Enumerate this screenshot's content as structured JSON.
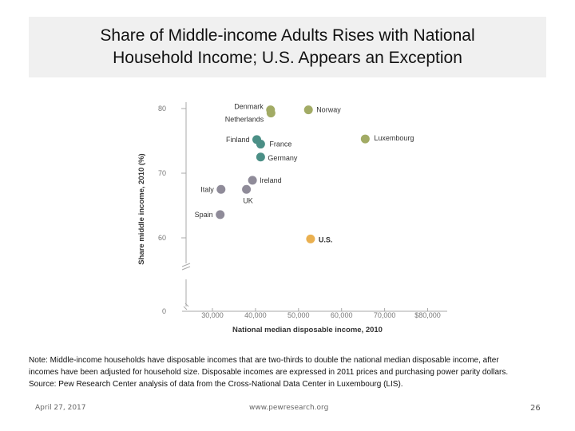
{
  "slide": {
    "title": "Share of Middle-income Adults Rises with National\nHousehold Income; U.S. Appears an Exception",
    "note_lines": [
      "Note: Middle-income households have disposable incomes that are two-thirds to double the national median disposable income, after",
      "incomes have been adjusted for household size. Disposable incomes are expressed in 2011 prices and purchasing power parity dollars.",
      "Source: Pew Research Center analysis of data from the Cross-National Data Center in Luxembourg (LIS)."
    ],
    "footer": {
      "date": "April 27, 2017",
      "url": "www.pewresearch.org",
      "page": "26"
    }
  },
  "chart_data": {
    "type": "scatter",
    "xlabel": "National median disposable income, 2010",
    "ylabel": "Share middle income, 2010 (%)",
    "xlim": [
      20000,
      83000
    ],
    "ylim": [
      0,
      80
    ],
    "x_axis_break": true,
    "y_axis_break": true,
    "x_ticks": [
      30000,
      40000,
      50000,
      60000,
      70000,
      80000
    ],
    "x_tick_labels": [
      "30,000",
      "40,000",
      "50,000",
      "60,000",
      "70,000",
      "$80,000"
    ],
    "y_ticks": [
      0,
      60,
      70,
      80
    ],
    "y_tick_labels": [
      "0",
      "60",
      "70",
      "80"
    ],
    "grid": false,
    "points": [
      {
        "label": "Denmark",
        "x": 43500,
        "y": 79.8,
        "group": "olive"
      },
      {
        "label": "Netherlands",
        "x": 43600,
        "y": 79.3,
        "group": "olive"
      },
      {
        "label": "Norway",
        "x": 52300,
        "y": 79.8,
        "group": "olive"
      },
      {
        "label": "Luxembourg",
        "x": 65500,
        "y": 75.3,
        "group": "olive"
      },
      {
        "label": "Finland",
        "x": 40300,
        "y": 75.2,
        "group": "teal"
      },
      {
        "label": "France",
        "x": 41200,
        "y": 74.5,
        "group": "teal"
      },
      {
        "label": "Germany",
        "x": 41200,
        "y": 72.5,
        "group": "teal"
      },
      {
        "label": "Ireland",
        "x": 39300,
        "y": 68.9,
        "group": "gray"
      },
      {
        "label": "Italy",
        "x": 32000,
        "y": 67.5,
        "group": "gray"
      },
      {
        "label": "UK",
        "x": 37900,
        "y": 67.5,
        "group": "gray"
      },
      {
        "label": "Spain",
        "x": 31800,
        "y": 63.6,
        "group": "gray"
      },
      {
        "label": "U.S.",
        "x": 52800,
        "y": 59.1,
        "group": "orange"
      }
    ],
    "colors": {
      "olive": "#a2ab65",
      "teal": "#4b8f86",
      "gray": "#8f8b99",
      "orange": "#eab050",
      "axis": "#aaaaaa",
      "tick_text": "#777777",
      "label_text": "#333333"
    }
  }
}
